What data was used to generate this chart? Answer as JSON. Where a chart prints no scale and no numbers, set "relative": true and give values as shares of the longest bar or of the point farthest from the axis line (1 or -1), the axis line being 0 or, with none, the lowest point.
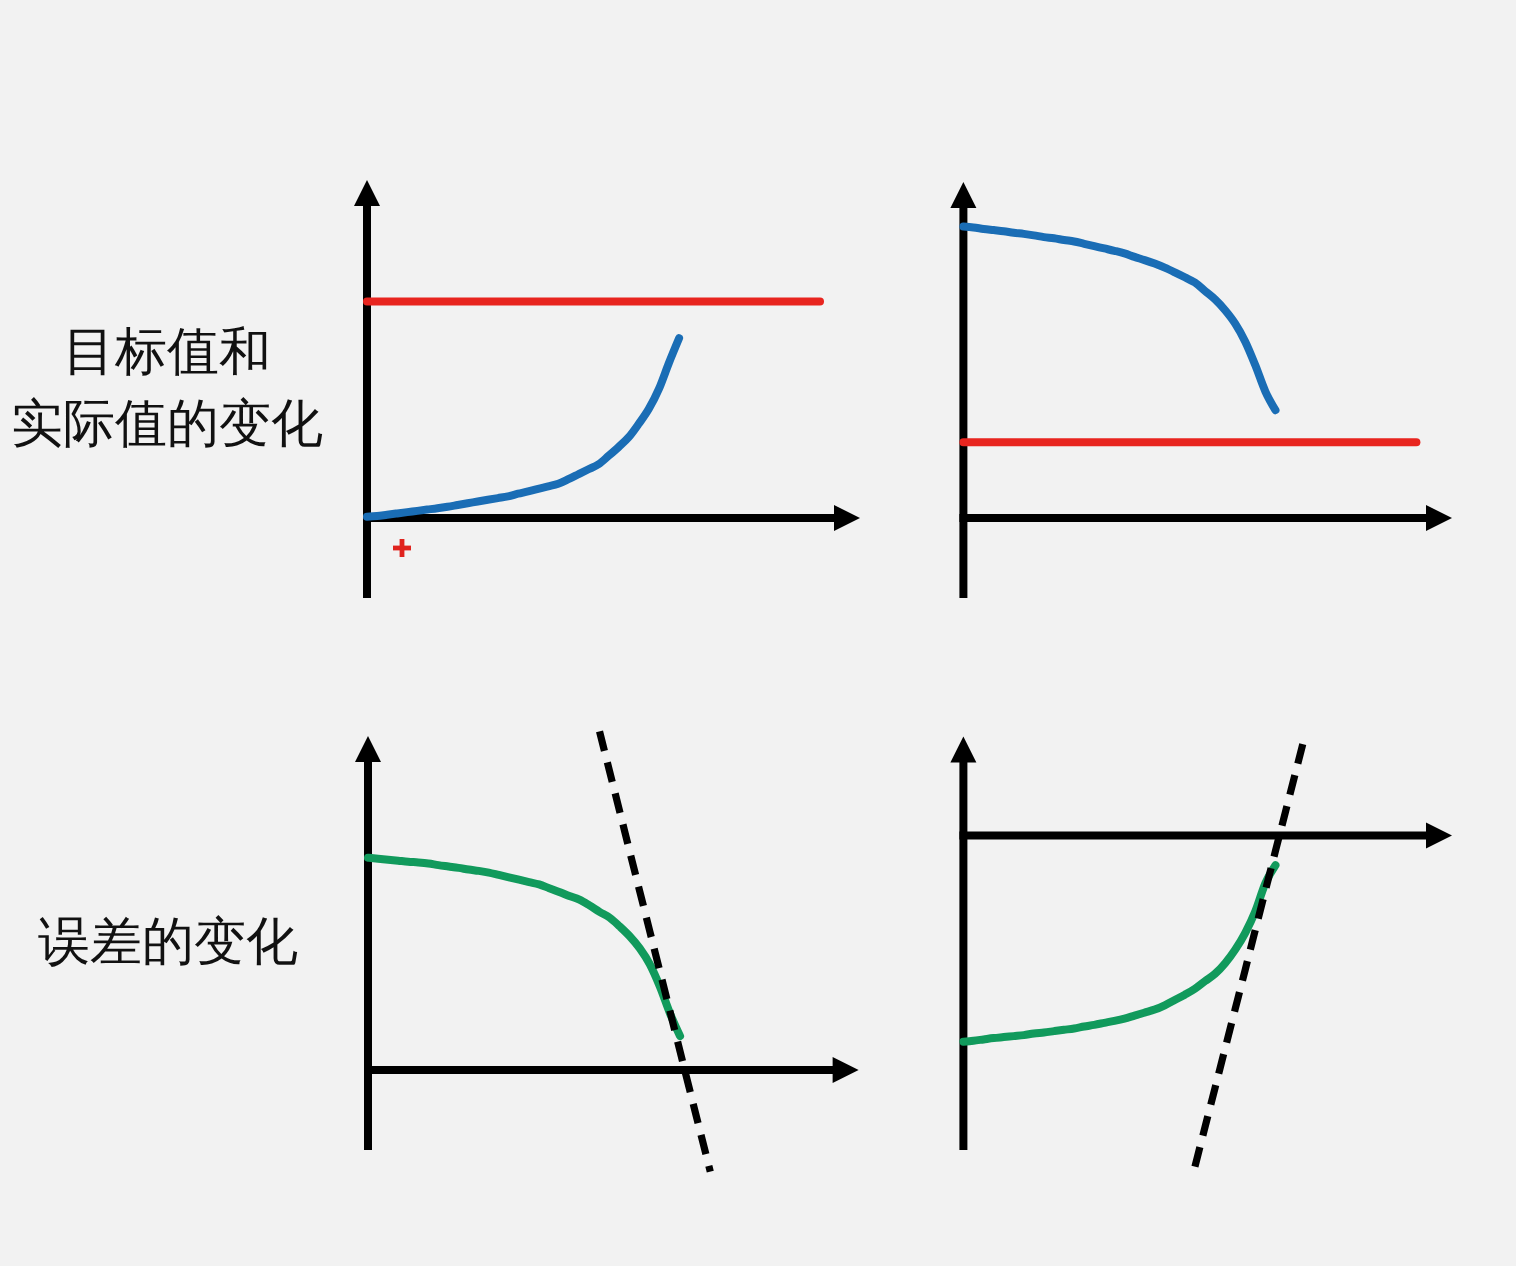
{
  "chart_data": [
    {
      "type": "line",
      "relative": true,
      "ylabel": "目标值和实际值的变化",
      "categories": [
        null,
        null,
        null,
        null,
        null,
        null,
        null,
        null,
        null,
        null,
        null,
        null,
        null,
        null,
        null,
        null,
        null,
        null,
        null,
        null,
        null,
        null,
        null,
        null,
        null,
        null,
        null,
        null,
        null,
        null,
        null,
        null,
        null,
        null,
        null,
        null,
        null,
        null,
        null,
        null,
        null,
        null,
        null,
        null,
        null,
        null
      ],
      "series": [
        {
          "color": "#e8251f",
          "values": [
            1,
            1,
            1,
            1,
            1,
            1,
            1,
            1,
            1,
            1,
            1,
            1,
            1,
            1,
            1,
            1,
            1,
            1,
            1,
            1,
            1,
            1,
            1,
            1,
            1,
            1,
            1,
            1,
            1,
            1,
            1,
            1,
            1,
            1,
            1,
            1,
            1,
            1,
            1,
            1,
            1,
            1,
            1,
            1,
            1,
            1
          ]
        },
        {
          "color": "#1a6db5",
          "values": [
            0.006,
            0.009,
            0.015,
            0.021,
            0.027,
            0.033,
            0.039,
            0.045,
            0.052,
            0.06,
            0.068,
            0.076,
            0.084,
            0.092,
            0.1,
            0.112,
            0.123,
            0.135,
            0.146,
            0.158,
            0.179,
            0.202,
            0.225,
            0.248,
            0.287,
            0.328,
            0.373,
            0.435,
            0.504,
            0.596,
            0.717,
            0.83,
            null,
            null,
            null,
            null,
            null,
            null,
            null,
            null,
            null,
            null,
            null,
            null,
            null,
            null
          ]
        }
      ]
    },
    {
      "type": "line",
      "relative": true,
      "categories": [
        null,
        null,
        null,
        null,
        null,
        null,
        null,
        null,
        null,
        null,
        null,
        null,
        null,
        null,
        null,
        null,
        null,
        null,
        null,
        null,
        null,
        null,
        null,
        null,
        null,
        null,
        null,
        null,
        null,
        null,
        null,
        null,
        null,
        null,
        null,
        null,
        null,
        null,
        null,
        null,
        null,
        null,
        null,
        null,
        null,
        null
      ],
      "series": [
        {
          "color": "#e8251f",
          "values": [
            0.26,
            0.26,
            0.26,
            0.26,
            0.26,
            0.26,
            0.26,
            0.26,
            0.26,
            0.26,
            0.26,
            0.26,
            0.26,
            0.26,
            0.26,
            0.26,
            0.26,
            0.26,
            0.26,
            0.26,
            0.26,
            0.26,
            0.26,
            0.26,
            0.26,
            0.26,
            0.26,
            0.26,
            0.26,
            0.26,
            0.26,
            0.26,
            0.26,
            0.26,
            0.26,
            0.26,
            0.26,
            0.26,
            0.26,
            0.26,
            0.26,
            0.26,
            0.26,
            0.26,
            0.26,
            0.26
          ]
        },
        {
          "color": "#1a6db5",
          "values": [
            1,
            0.997,
            0.992,
            0.988,
            0.984,
            0.979,
            0.975,
            0.97,
            0.964,
            0.96,
            0.954,
            0.949,
            0.941,
            0.933,
            0.925,
            0.917,
            0.908,
            0.896,
            0.885,
            0.873,
            0.859,
            0.843,
            0.826,
            0.808,
            0.779,
            0.75,
            0.713,
            0.667,
            0.605,
            0.524,
            0.434,
            0.37,
            null,
            null,
            null,
            null,
            null,
            null,
            null,
            null,
            null,
            null,
            null,
            null,
            null,
            null
          ]
        }
      ]
    },
    {
      "type": "line",
      "relative": true,
      "ylabel": "误差的变化",
      "categories": [
        null,
        null,
        null,
        null,
        null,
        null,
        null,
        null,
        null,
        null,
        null,
        null,
        null,
        null,
        null,
        null,
        null,
        null,
        null,
        null,
        null,
        null,
        null,
        null,
        null,
        null,
        null,
        null,
        null,
        null,
        null,
        null,
        null,
        null,
        null,
        null,
        null,
        null,
        null,
        null,
        null,
        null,
        null,
        null,
        null,
        null
      ],
      "series": [
        {
          "color": "#119a5c",
          "values": [
            0.627,
            0.624,
            0.621,
            0.618,
            0.615,
            0.613,
            0.61,
            0.605,
            0.601,
            0.597,
            0.592,
            0.588,
            0.583,
            0.576,
            0.569,
            0.562,
            0.555,
            0.548,
            0.537,
            0.526,
            0.514,
            0.503,
            0.486,
            0.467,
            0.45,
            0.424,
            0.395,
            0.359,
            0.312,
            0.246,
            0.167,
            0.1,
            null,
            null,
            null,
            null,
            null,
            null,
            null,
            null,
            null,
            null,
            null,
            null,
            null,
            null
          ]
        },
        {
          "color": "#000000",
          "line_style": "dashed",
          "values": [
            null,
            null,
            null,
            null,
            null,
            null,
            null,
            null,
            null,
            null,
            null,
            null,
            null,
            null,
            null,
            null,
            null,
            null,
            null,
            null,
            null,
            null,
            null,
            1,
            0.882,
            0.764,
            0.645,
            0.527,
            0.409,
            0.291,
            0.173,
            0.055,
            -0.064,
            -0.182,
            -0.3,
            null,
            null,
            null,
            null,
            null,
            null,
            null,
            null,
            null,
            null,
            null
          ]
        }
      ]
    },
    {
      "type": "line",
      "relative": true,
      "categories": [
        null,
        null,
        null,
        null,
        null,
        null,
        null,
        null,
        null,
        null,
        null,
        null,
        null,
        null,
        null,
        null,
        null,
        null,
        null,
        null,
        null,
        null,
        null,
        null,
        null,
        null,
        null,
        null,
        null,
        null,
        null,
        null,
        null,
        null,
        null,
        null,
        null,
        null,
        null,
        null,
        null,
        null,
        null,
        null,
        null,
        null
      ],
      "series": [
        {
          "color": "#119a5c",
          "values": [
            -0.623,
            -0.62,
            -0.616,
            -0.612,
            -0.609,
            -0.606,
            -0.603,
            -0.598,
            -0.595,
            -0.591,
            -0.587,
            -0.583,
            -0.577,
            -0.572,
            -0.566,
            -0.56,
            -0.553,
            -0.544,
            -0.535,
            -0.526,
            -0.513,
            -0.497,
            -0.481,
            -0.463,
            -0.44,
            -0.418,
            -0.386,
            -0.345,
            -0.294,
            -0.229,
            -0.144,
            -0.09,
            null,
            null,
            null,
            null,
            null,
            null,
            null,
            null,
            null,
            null,
            null,
            null,
            null,
            null
          ]
        },
        {
          "color": "#000000",
          "line_style": "dashed",
          "values": [
            null,
            null,
            null,
            null,
            null,
            null,
            null,
            null,
            null,
            null,
            null,
            null,
            null,
            null,
            null,
            null,
            null,
            null,
            null,
            null,
            null,
            null,
            null,
            -1,
            -0.881,
            -0.762,
            -0.643,
            -0.524,
            -0.405,
            -0.285,
            -0.166,
            -0.047,
            0.072,
            0.191,
            0.31,
            null,
            null,
            null,
            null,
            null,
            null,
            null,
            null,
            null,
            null,
            null
          ]
        }
      ]
    }
  ]
}
